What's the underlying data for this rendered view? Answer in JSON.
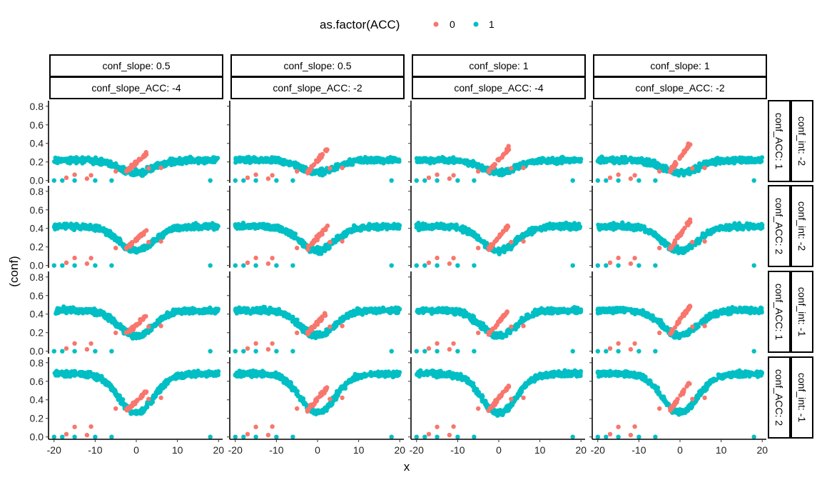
{
  "chart_data": {
    "type": "scatter",
    "xlabel": "x",
    "ylabel": "(conf)",
    "xlim": [
      -21,
      21
    ],
    "ylim": [
      -0.01,
      0.86
    ],
    "x_ticks": [
      -20,
      -10,
      0,
      10,
      20
    ],
    "y_ticks": [
      0.0,
      0.2,
      0.4,
      0.6,
      0.8
    ],
    "x_tick_labels": [
      "-20",
      "-10",
      "0",
      "10",
      "20"
    ],
    "y_tick_labels": [
      "0.0",
      "0.2",
      "0.4",
      "0.6",
      "0.8"
    ],
    "grid": false,
    "legend": {
      "title": "as.factor(ACC)",
      "position": "top",
      "entries": [
        {
          "label": "0",
          "color": "#F8766D"
        },
        {
          "label": "1",
          "color": "#00BFC4"
        }
      ]
    },
    "column_strips": [
      {
        "top": "conf_slope: 0.5",
        "bottom": "conf_slope_ACC: -4",
        "slope": 0.5,
        "slope_acc": -4
      },
      {
        "top": "conf_slope: 0.5",
        "bottom": "conf_slope_ACC: -2",
        "slope": 0.5,
        "slope_acc": -2
      },
      {
        "top": "conf_slope: 1",
        "bottom": "conf_slope_ACC: -4",
        "slope": 1,
        "slope_acc": -4
      },
      {
        "top": "conf_slope: 1",
        "bottom": "conf_slope_ACC: -2",
        "slope": 1,
        "slope_acc": -2
      }
    ],
    "row_strips": [
      {
        "inner": "conf_ACC: 1",
        "outer": "conf_int: -2",
        "cyan_level": 0.22
      },
      {
        "inner": "conf_ACC: 2",
        "outer": "conf_int: -2",
        "cyan_level": 0.42
      },
      {
        "inner": "conf_ACC: 1",
        "outer": "conf_int: -1",
        "cyan_level": 0.44
      },
      {
        "inner": "conf_ACC: 2",
        "outer": "conf_int: -1",
        "cyan_level": 0.68
      }
    ],
    "series": [
      {
        "name": "0",
        "color": "#F8766D",
        "sparse_points": [
          {
            "x": -17,
            "y": 0.03
          },
          {
            "x": -12,
            "y": 0.02
          },
          {
            "x": -5,
            "y": 0.06
          },
          {
            "x": 3,
            "y": 0.08
          },
          {
            "x": 6,
            "y": 0.1
          }
        ]
      },
      {
        "name": "1",
        "color": "#00BFC4",
        "sparse_points": [
          {
            "x": -20,
            "y": 0.0
          },
          {
            "x": -18,
            "y": 0.0
          },
          {
            "x": -15,
            "y": 0.0
          },
          {
            "x": -10,
            "y": 0.0
          },
          {
            "x": -6,
            "y": 0.0
          },
          {
            "x": 18,
            "y": 0.0
          }
        ]
      }
    ],
    "points_per_panel": 460
  }
}
